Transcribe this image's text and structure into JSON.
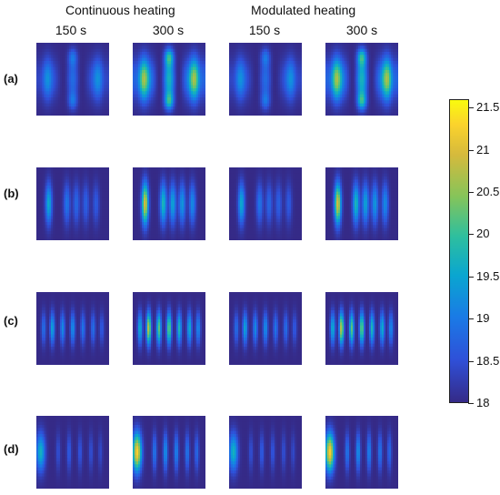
{
  "chart_data": {
    "type": "heatmap",
    "groups": [
      "Continuous heating",
      "Modulated heating"
    ],
    "times": [
      "150 s",
      "300 s",
      "150 s",
      "300 s"
    ],
    "rows": [
      "(a)",
      "(b)",
      "(c)",
      "(d)"
    ],
    "colorbar": {
      "min": 18,
      "max": 21.6,
      "ticks": [
        21.5,
        21,
        20.5,
        20,
        19.5,
        19,
        18.5,
        18
      ],
      "tick_labels": [
        "21.5",
        "21",
        "20.5",
        "20",
        "19.5",
        "19",
        "18.5",
        "18"
      ]
    },
    "panels": [
      {
        "row": "(a)",
        "group": "Continuous heating",
        "time": "150 s",
        "peak": 19.4
      },
      {
        "row": "(a)",
        "group": "Continuous heating",
        "time": "300 s",
        "peak": 20.9
      },
      {
        "row": "(a)",
        "group": "Modulated heating",
        "time": "150 s",
        "peak": 19.4
      },
      {
        "row": "(a)",
        "group": "Modulated heating",
        "time": "300 s",
        "peak": 20.9
      },
      {
        "row": "(b)",
        "group": "Continuous heating",
        "time": "150 s",
        "peak": 19.6
      },
      {
        "row": "(b)",
        "group": "Continuous heating",
        "time": "300 s",
        "peak": 21.0
      },
      {
        "row": "(b)",
        "group": "Modulated heating",
        "time": "150 s",
        "peak": 19.6
      },
      {
        "row": "(b)",
        "group": "Modulated heating",
        "time": "300 s",
        "peak": 21.0
      },
      {
        "row": "(c)",
        "group": "Continuous heating",
        "time": "150 s",
        "peak": 19.6
      },
      {
        "row": "(c)",
        "group": "Continuous heating",
        "time": "300 s",
        "peak": 21.0
      },
      {
        "row": "(c)",
        "group": "Modulated heating",
        "time": "150 s",
        "peak": 19.6
      },
      {
        "row": "(c)",
        "group": "Modulated heating",
        "time": "300 s",
        "peak": 21.0
      },
      {
        "row": "(d)",
        "group": "Continuous heating",
        "time": "150 s",
        "peak": 19.7
      },
      {
        "row": "(d)",
        "group": "Continuous heating",
        "time": "300 s",
        "peak": 21.3
      },
      {
        "row": "(d)",
        "group": "Modulated heating",
        "time": "150 s",
        "peak": 19.7
      },
      {
        "row": "(d)",
        "group": "Modulated heating",
        "time": "300 s",
        "peak": 21.3
      }
    ]
  }
}
